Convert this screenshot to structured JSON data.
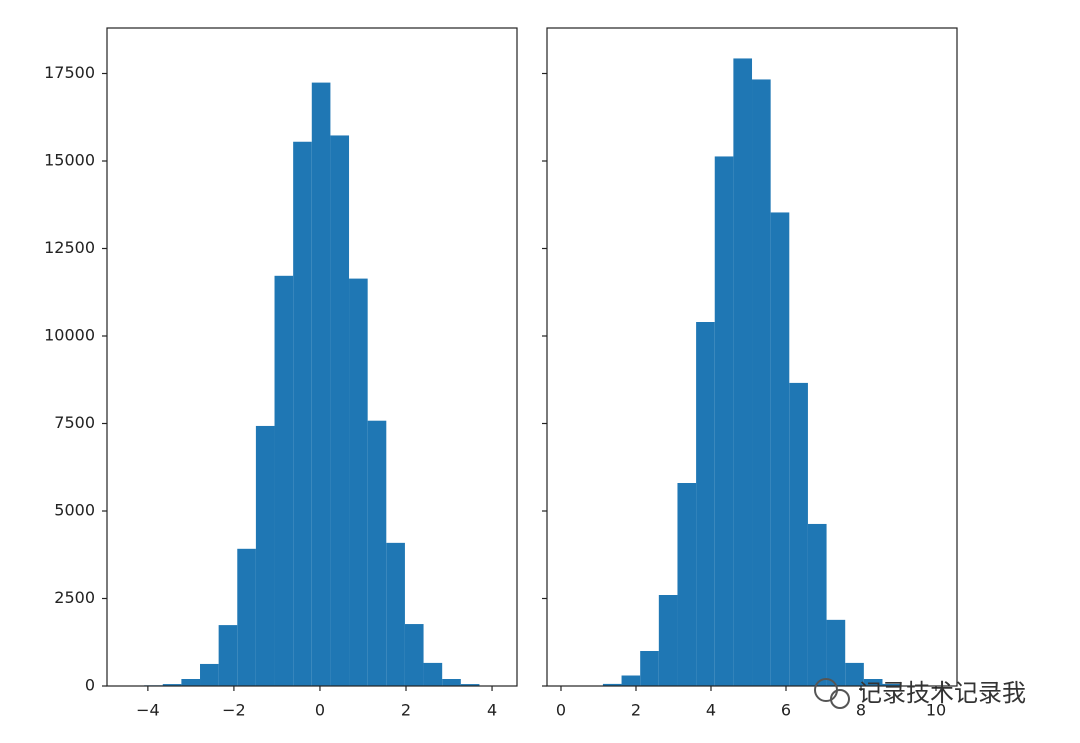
{
  "chart_data": [
    {
      "type": "histogram",
      "color": "#1f77b4",
      "bins": [
        -4.52,
        -4.087,
        -3.654,
        -3.221,
        -2.788,
        -2.355,
        -1.922,
        -1.489,
        -1.056,
        -0.623,
        -0.19,
        0.243,
        0.676,
        1.109,
        1.542,
        1.975,
        2.408,
        2.841,
        3.274,
        3.707,
        4.14
      ],
      "values": [
        5,
        20,
        55,
        200,
        630,
        1740,
        3920,
        7430,
        11720,
        15550,
        17240,
        15730,
        11640,
        7580,
        4090,
        1770,
        660,
        200,
        55,
        10
      ],
      "xlim": [
        -4.95,
        4.58
      ],
      "xticks": [
        {
          "value": -4,
          "label": "−4"
        },
        {
          "value": -2,
          "label": "−2"
        },
        0,
        2,
        4
      ],
      "ylim": [
        0,
        18800
      ],
      "yticks": [
        0,
        2500,
        5000,
        7500,
        10000,
        12500,
        15000,
        17500
      ]
    },
    {
      "type": "histogram",
      "color": "#1f77b4",
      "bins": [
        0.124,
        0.621,
        1.118,
        1.615,
        2.112,
        2.609,
        3.106,
        3.603,
        4.1,
        4.597,
        5.094,
        5.591,
        6.088,
        6.585,
        7.082,
        7.579,
        8.076,
        8.573,
        9.07,
        9.567,
        10.064
      ],
      "values": [
        2,
        5,
        60,
        300,
        1000,
        2600,
        5800,
        10400,
        15130,
        17930,
        17330,
        13530,
        8660,
        4630,
        1890,
        660,
        200,
        60,
        15,
        5
      ],
      "xlim": [
        -0.373,
        10.56
      ],
      "xticks": [
        0,
        2,
        4,
        6,
        8,
        10
      ],
      "ylim": [
        0,
        18800
      ]
    }
  ],
  "watermark": "记录技术记录我"
}
